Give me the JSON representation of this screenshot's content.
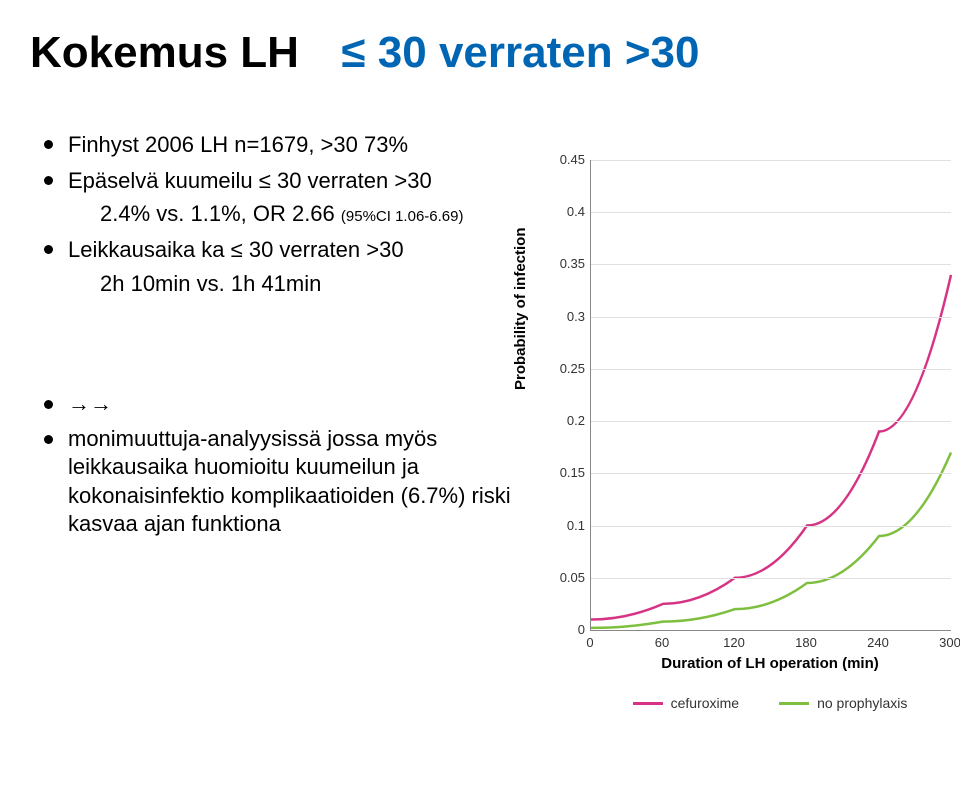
{
  "title": {
    "black": "Kokemus LH",
    "blue": "≤ 30 verraten >30"
  },
  "bullets_top": {
    "b1": "Finhyst 2006 LH n=1679, >30 73%",
    "b2": "Epäselvä kuumeilu ≤ 30 verraten >30",
    "b2_sub": "2.4% vs. 1.1%, OR 2.66 ",
    "b2_small": "(95%CI 1.06-6.69)",
    "b3": "Leikkausaika ka ≤ 30 verraten >30",
    "b3_sub": "2h 10min vs. 1h 41min"
  },
  "bullets_bottom": {
    "arrow": "→→",
    "b1": "monimuuttuja-analyysissä jossa myös leikkausaika huomioitu kuumeilun ja kokonaisinfektio komplikaatioiden (6.7%) riski kasvaa ajan funktiona"
  },
  "chart": {
    "type": "line",
    "ylabel": "Probability of infection",
    "xlabel": "Duration of LH operation (min)",
    "yticks": [
      0,
      0.05,
      0.1,
      0.15,
      0.2,
      0.25,
      0.3,
      0.35,
      0.4,
      0.45
    ],
    "ymin": 0,
    "ymax": 0.45,
    "xticks": [
      0,
      60,
      120,
      180,
      240,
      300
    ],
    "xmin": 0,
    "xmax": 300,
    "grid_color": "#e0e0e0",
    "series": [
      {
        "name": "cefuroxime",
        "color": "#d63384",
        "line_width": 2.5,
        "points": [
          [
            0,
            0.01
          ],
          [
            60,
            0.025
          ],
          [
            120,
            0.05
          ],
          [
            180,
            0.1
          ],
          [
            240,
            0.19
          ],
          [
            300,
            0.34
          ]
        ]
      },
      {
        "name": "no prophylaxis",
        "color": "#7fbf3f",
        "line_width": 2.5,
        "points": [
          [
            0,
            0.002
          ],
          [
            60,
            0.008
          ],
          [
            120,
            0.02
          ],
          [
            180,
            0.045
          ],
          [
            240,
            0.09
          ],
          [
            300,
            0.17
          ]
        ]
      }
    ],
    "legend": [
      {
        "label": "cefuroxime",
        "color": "#d63384"
      },
      {
        "label": "no prophylaxis",
        "color": "#7fbf3f"
      }
    ]
  }
}
